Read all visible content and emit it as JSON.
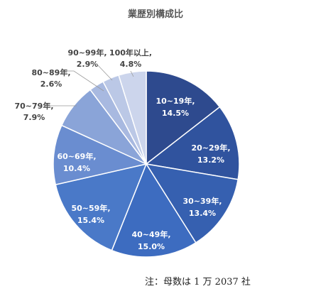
{
  "chart_data": {
    "type": "pie",
    "title": "業歴別構成比",
    "note": "注：母数は 1 万 2037 社",
    "slices": [
      {
        "category": "10~19年",
        "percent_label": "14.5%",
        "value": 14.5,
        "color": "#2e4a8e"
      },
      {
        "category": "20~29年",
        "percent_label": "13.2%",
        "value": 13.2,
        "color": "#30539e"
      },
      {
        "category": "30~39年",
        "percent_label": "13.4%",
        "value": 13.4,
        "color": "#3660b0"
      },
      {
        "category": "40~49年",
        "percent_label": "15.0%",
        "value": 15.0,
        "color": "#3d6cc0"
      },
      {
        "category": "50~59年",
        "percent_label": "15.4%",
        "value": 15.4,
        "color": "#4a79c8"
      },
      {
        "category": "60~69年",
        "percent_label": "10.4%",
        "value": 10.4,
        "color": "#6a8dd0"
      },
      {
        "category": "70~79年",
        "percent_label": "7.9%",
        "value": 7.9,
        "color": "#8aa4d8"
      },
      {
        "category": "80~89年",
        "percent_label": "2.6%",
        "value": 2.6,
        "color": "#a8b9e0"
      },
      {
        "category": "90~99年",
        "percent_label": "2.9%",
        "value": 2.9,
        "color": "#bbc8e6"
      },
      {
        "category": "100年以上",
        "percent_label": "4.8%",
        "value": 4.8,
        "color": "#ccd5ec"
      }
    ]
  }
}
